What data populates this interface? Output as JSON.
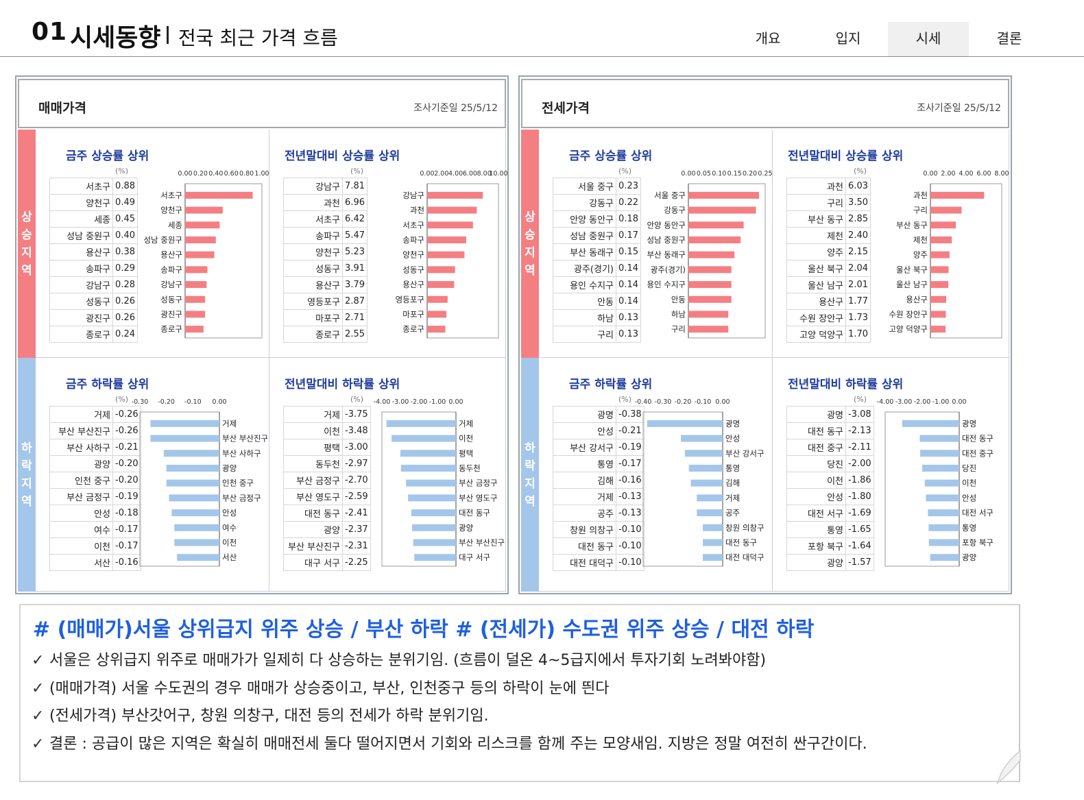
{
  "header": {
    "title_num": "01",
    "title_main": "시세동향",
    "title_sub": "전국 최근 가격 흐름",
    "nav": [
      "개요",
      "입지",
      "시세",
      "결론"
    ],
    "nav_active": 2
  },
  "side_labels": {
    "up": "상승지역",
    "down": "하락지역"
  },
  "unit_label": "(%)",
  "panels": [
    {
      "title": "매매가격",
      "date": "조사기준일 25/5/12",
      "quads": [
        {
          "title": "금주 상승률 상위"
        },
        {
          "title": "전년말대비 상승률 상위"
        },
        {
          "title": "금주 하락률 상위"
        },
        {
          "title": "전년말대비 하락률 상위"
        }
      ]
    },
    {
      "title": "전세가격",
      "date": "조사기준일 25/5/12",
      "quads": [
        {
          "title": "금주 상승률 상위"
        },
        {
          "title": "전년말대비 상승률 상위"
        },
        {
          "title": "금주 하락률 상위"
        },
        {
          "title": "전년말대비 하락률 상위"
        }
      ]
    }
  ],
  "chart_data": [
    {
      "type": "bar",
      "panel": "매매가격",
      "title": "금주 상승률 상위",
      "unit": "(%)",
      "categories": [
        "서초구",
        "양천구",
        "세종",
        "성남 중원구",
        "용산구",
        "송파구",
        "강남구",
        "성동구",
        "광진구",
        "종로구"
      ],
      "values": [
        0.88,
        0.49,
        0.45,
        0.4,
        0.38,
        0.29,
        0.28,
        0.26,
        0.26,
        0.24
      ],
      "xlim": [
        0,
        1.0
      ],
      "ticks": [
        "0.00",
        "0.20",
        "0.40",
        "0.60",
        "0.80",
        "1.00"
      ],
      "color": "#f47f83"
    },
    {
      "type": "bar",
      "panel": "매매가격",
      "title": "전년말대비 상승률 상위",
      "unit": "(%)",
      "categories": [
        "강남구",
        "과천",
        "서초구",
        "송파구",
        "양천구",
        "성동구",
        "용산구",
        "영등포구",
        "마포구",
        "종로구"
      ],
      "values": [
        7.81,
        6.96,
        6.42,
        5.47,
        5.23,
        3.91,
        3.79,
        2.87,
        2.71,
        2.55
      ],
      "xlim": [
        0,
        10.0
      ],
      "ticks": [
        "0.00",
        "2.00",
        "4.00",
        "6.00",
        "8.00",
        "10.00"
      ],
      "color": "#f47f83"
    },
    {
      "type": "bar",
      "panel": "매매가격",
      "title": "금주 하락률 상위",
      "unit": "(%)",
      "categories": [
        "거제",
        "부산 부산진구",
        "부산 사하구",
        "광양",
        "인천 중구",
        "부산 금정구",
        "안성",
        "여수",
        "이천",
        "서산"
      ],
      "values": [
        -0.26,
        -0.26,
        -0.21,
        -0.2,
        -0.2,
        -0.19,
        -0.18,
        -0.17,
        -0.17,
        -0.16
      ],
      "xlim": [
        -0.3,
        0.0
      ],
      "ticks": [
        "-0.30",
        "-0.20",
        "-0.10",
        "0.00"
      ],
      "color": "#a4c6ea"
    },
    {
      "type": "bar",
      "panel": "매매가격",
      "title": "전년말대비 하락률 상위",
      "unit": "(%)",
      "categories": [
        "거제",
        "이천",
        "평택",
        "동두천",
        "부산 금정구",
        "부산 영도구",
        "대전 동구",
        "광양",
        "부산 부산진구",
        "대구 서구"
      ],
      "values": [
        -3.75,
        -3.48,
        -3.0,
        -2.97,
        -2.7,
        -2.59,
        -2.41,
        -2.37,
        -2.31,
        -2.25
      ],
      "xlim": [
        -4.0,
        0.0
      ],
      "ticks": [
        "-4.00",
        "-3.00",
        "-2.00",
        "-1.00",
        "0.00"
      ],
      "color": "#a4c6ea"
    },
    {
      "type": "bar",
      "panel": "전세가격",
      "title": "금주 상승률 상위",
      "unit": "(%)",
      "categories": [
        "서울 중구",
        "강동구",
        "안양 동안구",
        "성남 중원구",
        "부산 동래구",
        "광주(경기)",
        "용인 수지구",
        "안동",
        "하남",
        "구리"
      ],
      "values": [
        0.23,
        0.22,
        0.18,
        0.17,
        0.15,
        0.14,
        0.14,
        0.14,
        0.13,
        0.13
      ],
      "xlim": [
        0,
        0.25
      ],
      "ticks": [
        "0.00",
        "0.05",
        "0.10",
        "0.15",
        "0.20",
        "0.25"
      ],
      "color": "#f47f83"
    },
    {
      "type": "bar",
      "panel": "전세가격",
      "title": "전년말대비 상승률 상위",
      "unit": "(%)",
      "categories": [
        "과천",
        "구리",
        "부산 동구",
        "제천",
        "양주",
        "울산 북구",
        "울산 남구",
        "용산구",
        "수원 장안구",
        "고양 덕양구"
      ],
      "values": [
        6.03,
        3.5,
        2.85,
        2.4,
        2.15,
        2.04,
        2.01,
        1.77,
        1.73,
        1.7
      ],
      "xlim": [
        0,
        8.0
      ],
      "ticks": [
        "0.00",
        "2.00",
        "4.00",
        "6.00",
        "8.00"
      ],
      "color": "#f47f83"
    },
    {
      "type": "bar",
      "panel": "전세가격",
      "title": "금주 하락률 상위",
      "unit": "(%)",
      "categories": [
        "광명",
        "안성",
        "부산 강서구",
        "통영",
        "김해",
        "거제",
        "공주",
        "창원 의창구",
        "대전 동구",
        "대전 대덕구"
      ],
      "values": [
        -0.38,
        -0.21,
        -0.19,
        -0.17,
        -0.16,
        -0.13,
        -0.13,
        -0.1,
        -0.1,
        -0.1
      ],
      "xlim": [
        -0.4,
        0.0
      ],
      "ticks": [
        "-0.40",
        "-0.30",
        "-0.20",
        "-0.10",
        "0.00"
      ],
      "color": "#a4c6ea"
    },
    {
      "type": "bar",
      "panel": "전세가격",
      "title": "전년말대비 하락률 상위",
      "unit": "(%)",
      "categories": [
        "광명",
        "대전 동구",
        "대전 중구",
        "당진",
        "이천",
        "안성",
        "대전 서구",
        "통영",
        "포항 북구",
        "광양"
      ],
      "values": [
        -3.08,
        -2.13,
        -2.11,
        -2.0,
        -1.86,
        -1.8,
        -1.69,
        -1.65,
        -1.64,
        -1.57
      ],
      "xlim": [
        -4.0,
        0.0
      ],
      "ticks": [
        "-4.00",
        "-3.00",
        "-2.00",
        "-1.00",
        "0.00"
      ],
      "color": "#a4c6ea"
    }
  ],
  "summary": {
    "headline": "# (매매가)서울 상위급지 위주 상승 / 부산 하락 # (전세가) 수도권 위주 상승 / 대전 하락",
    "check_mark": "✓",
    "bullets": [
      "서울은 상위급지 위주로 매매가가 일제히 다 상승하는 분위기임. (흐름이 덜온 4~5급지에서 투자기회 노려봐야함)",
      "(매매가격) 서울 수도권의 경우 매매가 상승중이고, 부산, 인천중구 등의 하락이 눈에 띈다",
      "(전세가격) 부산갓어구, 창원 의창구, 대전 등의 전세가 하락 분위기임.",
      "결론 : 공급이 많은 지역은 확실히 매매전세 둘다 떨어지면서 기회와 리스크를 함께 주는 모양새임. 지방은 정말 여전히 싼구간이다."
    ]
  }
}
